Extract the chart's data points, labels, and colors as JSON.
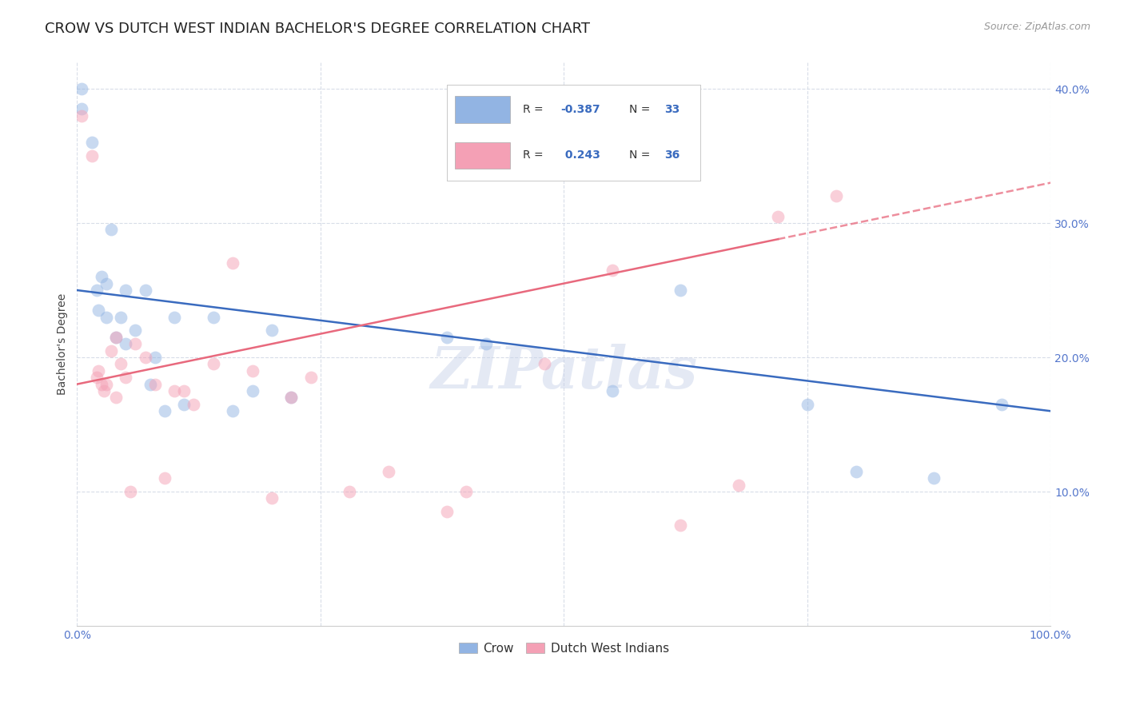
{
  "title": "CROW VS DUTCH WEST INDIAN BACHELOR'S DEGREE CORRELATION CHART",
  "source": "Source: ZipAtlas.com",
  "ylabel": "Bachelor's Degree",
  "crow_R": -0.387,
  "crow_N": 33,
  "dwi_R": 0.243,
  "dwi_N": 36,
  "crow_color": "#92b4e3",
  "dwi_color": "#f4a0b5",
  "crow_line_color": "#3a6bbf",
  "dwi_line_color": "#e8697d",
  "background_color": "#ffffff",
  "grid_color": "#d8dde8",
  "crow_x": [
    0.5,
    0.5,
    1.5,
    2.0,
    2.2,
    2.5,
    3.0,
    3.0,
    3.5,
    4.0,
    4.5,
    5.0,
    5.0,
    6.0,
    7.0,
    7.5,
    8.0,
    9.0,
    10.0,
    11.0,
    14.0,
    16.0,
    18.0,
    20.0,
    22.0,
    38.0,
    42.0,
    55.0,
    62.0,
    75.0,
    80.0,
    88.0,
    95.0
  ],
  "crow_y": [
    40.0,
    38.5,
    36.0,
    25.0,
    23.5,
    26.0,
    23.0,
    25.5,
    29.5,
    21.5,
    23.0,
    21.0,
    25.0,
    22.0,
    25.0,
    18.0,
    20.0,
    16.0,
    23.0,
    16.5,
    23.0,
    16.0,
    17.5,
    22.0,
    17.0,
    21.5,
    21.0,
    17.5,
    25.0,
    16.5,
    11.5,
    11.0,
    16.5
  ],
  "dwi_x": [
    0.5,
    1.5,
    2.0,
    2.2,
    2.5,
    2.8,
    3.0,
    3.5,
    4.0,
    4.0,
    4.5,
    5.0,
    5.5,
    6.0,
    7.0,
    8.0,
    9.0,
    10.0,
    11.0,
    12.0,
    14.0,
    16.0,
    18.0,
    20.0,
    22.0,
    24.0,
    28.0,
    32.0,
    38.0,
    40.0,
    48.0,
    55.0,
    62.0,
    68.0,
    72.0,
    78.0
  ],
  "dwi_y": [
    38.0,
    35.0,
    18.5,
    19.0,
    18.0,
    17.5,
    18.0,
    20.5,
    21.5,
    17.0,
    19.5,
    18.5,
    10.0,
    21.0,
    20.0,
    18.0,
    11.0,
    17.5,
    17.5,
    16.5,
    19.5,
    27.0,
    19.0,
    9.5,
    17.0,
    18.5,
    10.0,
    11.5,
    8.5,
    10.0,
    19.5,
    26.5,
    7.5,
    10.5,
    30.5,
    32.0
  ],
  "xlim": [
    0,
    100
  ],
  "ylim": [
    0,
    42
  ],
  "yticks": [
    10,
    20,
    30,
    40
  ],
  "ytick_labels": [
    "10.0%",
    "20.0%",
    "30.0%",
    "40.0%"
  ],
  "watermark": "ZIPatlas",
  "title_fontsize": 13,
  "axis_label_fontsize": 10,
  "tick_fontsize": 10,
  "marker_size": 130,
  "marker_alpha": 0.5,
  "line_width": 1.8
}
